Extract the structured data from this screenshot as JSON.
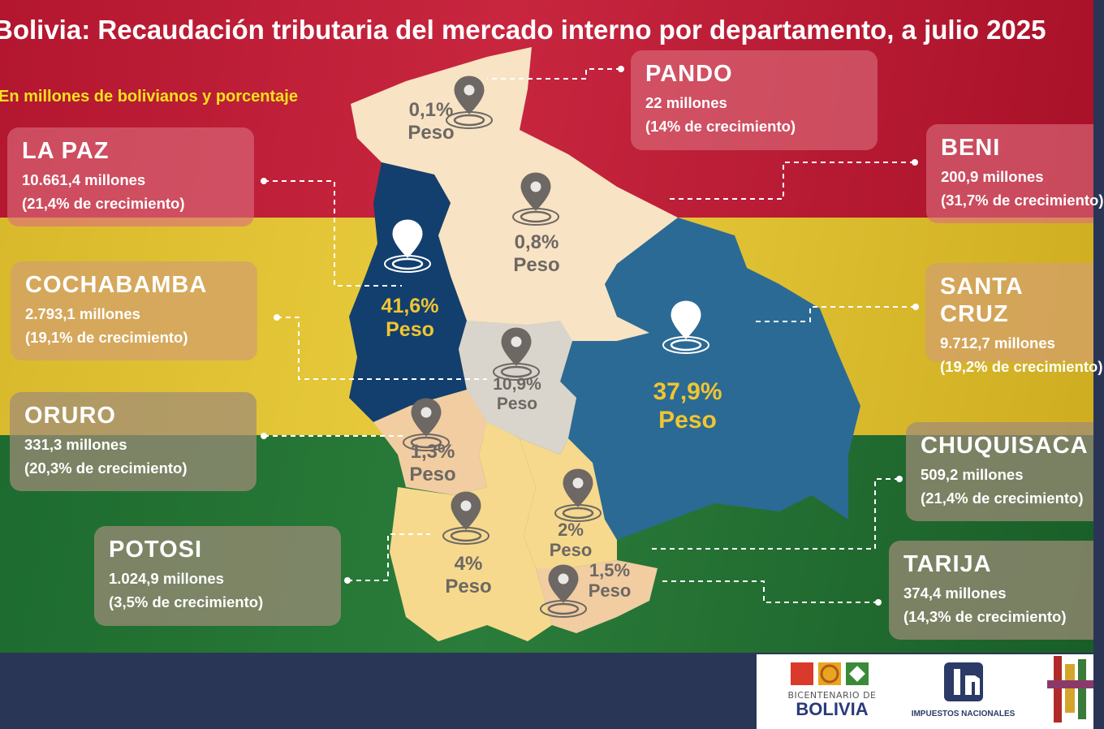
{
  "title": "Bolivia: Recaudación tributaria del mercado interno por departamento, a julio 2025",
  "subtitle": "En millones de bolivianos y porcentaje",
  "departments": [
    {
      "id": "pando",
      "name": "PANDO",
      "amount": "22 millones",
      "growth": "(14% de crecimiento)",
      "weight_pct": "0,1%",
      "weight_label": "Peso"
    },
    {
      "id": "la-paz",
      "name": "LA PAZ",
      "amount": "10.661,4 millones",
      "growth": "(21,4%  de crecimiento)",
      "weight_pct": "41,6%",
      "weight_label": "Peso"
    },
    {
      "id": "beni",
      "name": "BENI",
      "amount": "200,9 millones",
      "growth": "(31,7%  de crecimiento)",
      "weight_pct": "0,8%",
      "weight_label": "Peso"
    },
    {
      "id": "cochabamba",
      "name": "COCHABAMBA",
      "amount": "2.793,1 millones",
      "growth": "(19,1%  de crecimiento)",
      "weight_pct": "10,9%",
      "weight_label": "Peso"
    },
    {
      "id": "santa-cruz",
      "name": "SANTA CRUZ",
      "amount": "9.712,7 millones",
      "growth": "(19,2%  de crecimiento)",
      "weight_pct": "37,9%",
      "weight_label": "Peso"
    },
    {
      "id": "oruro",
      "name": "ORURO",
      "amount": "331,3 millones",
      "growth": "(20,3%  de crecimiento)",
      "weight_pct": "1,3%",
      "weight_label": "Peso"
    },
    {
      "id": "chuquisaca",
      "name": "CHUQUISACA",
      "amount": "509,2 millones",
      "growth": "(21,4%  de crecimiento)",
      "weight_pct": "2%",
      "weight_label": "Peso"
    },
    {
      "id": "potosi",
      "name": "POTOSI",
      "amount": "1.024,9 millones",
      "growth": "(3,5% de crecimiento)",
      "weight_pct": "4%",
      "weight_label": "Peso"
    },
    {
      "id": "tarija",
      "name": "TARIJA",
      "amount": "374,4 millones",
      "growth": "(14,3%  de crecimiento)",
      "weight_pct": "1,5%",
      "weight_label": "Peso"
    }
  ],
  "colors": {
    "highlight_text": "#f2c530",
    "la_paz": "#123f6e",
    "santa_cruz": "#2b6a94",
    "cochabamba": "#d9d4cc",
    "north": "#f8e3c4",
    "oruro": "#f2cda2",
    "south": "#f6d98d"
  },
  "logos": {
    "bicentenario_small": "BICENTENARIO DE",
    "bicentenario_big": "BOLIVIA",
    "impuestos": "IMPUESTOS NACIONALES"
  }
}
